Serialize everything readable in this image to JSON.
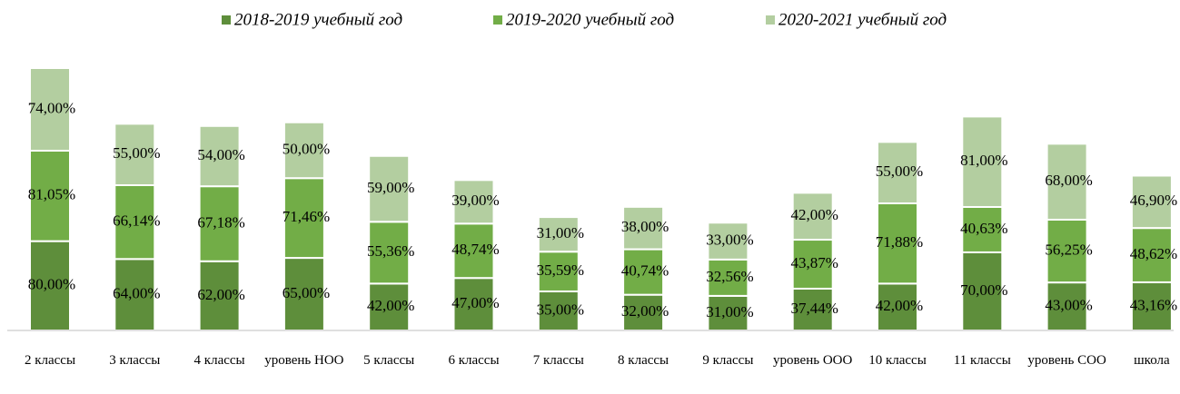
{
  "chart_data": {
    "type": "stacked_bar",
    "categories": [
      "2 классы",
      "3 классы",
      "4 классы",
      "уровень НОО",
      "5 классы",
      "6 классы",
      "7 классы",
      "8 классы",
      "9 классы",
      "уровень ООО",
      "10 классы",
      "11 классы",
      "уровень СОО",
      "школа"
    ],
    "series": [
      {
        "name": "2018-2019 учебный год",
        "color": "#5e8e3b",
        "values": [
          80.0,
          64.0,
          62.0,
          65.0,
          42.0,
          47.0,
          35.0,
          32.0,
          31.0,
          37.44,
          42.0,
          70.0,
          43.0,
          43.16
        ],
        "value_labels": [
          "80,00%",
          "64,00%",
          "62,00%",
          "65,00%",
          "42,00%",
          "47,00%",
          "35,00%",
          "32,00%",
          "31,00%",
          "37,44%",
          "42,00%",
          "70,00%",
          "43,00%",
          "43,16%"
        ]
      },
      {
        "name": "2019-2020 учебный год",
        "color": "#72ad47",
        "values": [
          81.05,
          66.14,
          67.18,
          71.46,
          55.36,
          48.74,
          35.59,
          40.74,
          32.56,
          43.87,
          71.88,
          40.63,
          56.25,
          48.62
        ],
        "value_labels": [
          "81,05%",
          "66,14%",
          "67,18%",
          "71,46%",
          "55,36%",
          "48,74%",
          "35,59%",
          "40,74%",
          "32,56%",
          "43,87%",
          "71,88%",
          "40,63%",
          "56,25%",
          "48,62%"
        ]
      },
      {
        "name": "2020-2021 учебный год",
        "color": "#b3cea0",
        "values": [
          74.0,
          55.0,
          54.0,
          50.0,
          59.0,
          39.0,
          31.0,
          38.0,
          33.0,
          42.0,
          55.0,
          81.0,
          68.0,
          46.9
        ],
        "value_labels": [
          "74,00%",
          "55,00%",
          "54,00%",
          "50,00%",
          "59,00%",
          "39,00%",
          "31,00%",
          "38,00%",
          "33,00%",
          "42,00%",
          "55,00%",
          "81,00%",
          "68,00%",
          "46,90%"
        ]
      }
    ],
    "legend": "top"
  }
}
